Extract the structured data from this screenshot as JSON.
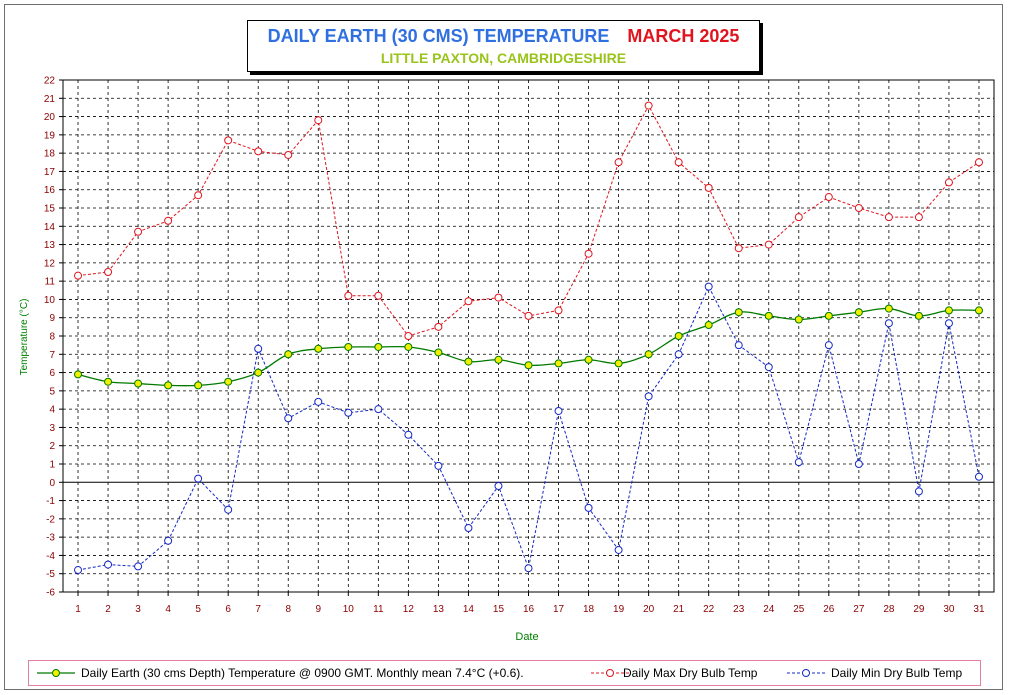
{
  "header": {
    "title_main": "DAILY EARTH (30 CMS) TEMPERATURE",
    "title_month": "MARCH 2025",
    "subtitle": "LITTLE PAXTON, CAMBRIDGESHIRE"
  },
  "chart_data": {
    "type": "line",
    "xlabel": "Date",
    "ylabel": "Temperature (°C)",
    "ylim": [
      -6,
      22
    ],
    "xlim": [
      0.5,
      31.5
    ],
    "grid": true,
    "legend_position": "bottom",
    "x": [
      1,
      2,
      3,
      4,
      5,
      6,
      7,
      8,
      9,
      10,
      11,
      12,
      13,
      14,
      15,
      16,
      17,
      18,
      19,
      20,
      21,
      22,
      23,
      24,
      25,
      26,
      27,
      28,
      29,
      30,
      31
    ],
    "yticks": [
      -6,
      -5,
      -4,
      -3,
      -2,
      -1,
      0,
      1,
      2,
      3,
      4,
      5,
      6,
      7,
      8,
      9,
      10,
      11,
      12,
      13,
      14,
      15,
      16,
      17,
      18,
      19,
      20,
      21,
      22
    ],
    "series": [
      {
        "name": "Daily Earth (30 cms Depth) Temperature @ 0900 GMT. Monthly mean 7.4°C (+0.6).",
        "color": "#007a00",
        "marker_fill": "#f0f000",
        "style": "solid",
        "values": [
          5.9,
          5.5,
          5.4,
          5.3,
          5.3,
          5.5,
          6.0,
          7.0,
          7.3,
          7.4,
          7.4,
          7.4,
          7.1,
          6.6,
          6.7,
          6.4,
          6.5,
          6.7,
          6.5,
          7.0,
          8.0,
          8.6,
          9.3,
          9.1,
          8.9,
          9.1,
          9.3,
          9.5,
          9.1,
          9.4,
          9.4
        ]
      },
      {
        "name": "Daily Max Dry Bulb Temp",
        "color": "#e0141e",
        "marker_fill": "none",
        "style": "dashed",
        "values": [
          11.3,
          11.5,
          13.7,
          14.3,
          15.7,
          18.7,
          18.1,
          17.9,
          19.8,
          10.2,
          10.2,
          8.0,
          8.5,
          9.9,
          10.1,
          9.1,
          9.4,
          12.5,
          17.5,
          20.6,
          17.5,
          16.1,
          12.8,
          13.0,
          14.5,
          15.6,
          15.0,
          14.5,
          14.5,
          16.4,
          17.5
        ]
      },
      {
        "name": "Daily Min Dry Bulb Temp",
        "color": "#1428c8",
        "marker_fill": "none",
        "style": "dashed",
        "values": [
          -4.8,
          -4.5,
          -4.6,
          -3.2,
          0.2,
          -1.5,
          7.3,
          3.5,
          4.4,
          3.8,
          4.0,
          2.6,
          0.9,
          -2.5,
          -0.2,
          -4.7,
          3.9,
          -1.4,
          -3.7,
          4.7,
          7.0,
          10.7,
          7.5,
          6.3,
          1.1,
          7.5,
          1.0,
          8.7,
          -0.5,
          8.7,
          0.3
        ]
      }
    ]
  },
  "legend": {
    "items": [
      {
        "label": "Daily Earth (30 cms Depth) Temperature @ 0900 GMT. Monthly mean 7.4°C (+0.6)."
      },
      {
        "label": "Daily Max Dry Bulb Temp"
      },
      {
        "label": "Daily Min Dry Bulb Temp"
      }
    ]
  }
}
